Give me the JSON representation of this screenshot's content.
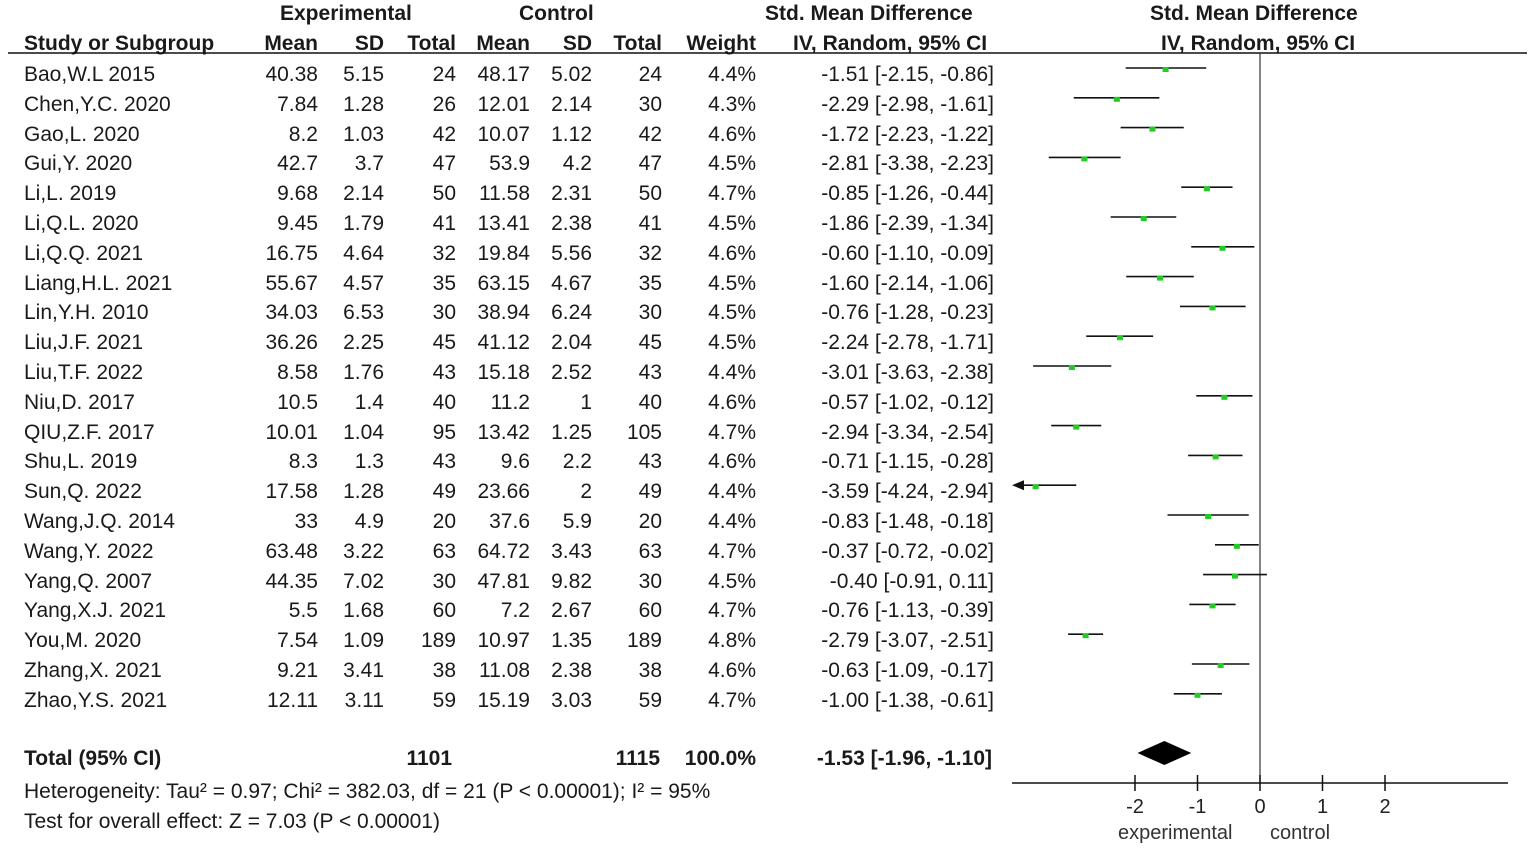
{
  "chart_data": {
    "type": "forest",
    "headers": {
      "group_experimental": "Experimental",
      "group_control": "Control",
      "effect_title": "Std. Mean Difference",
      "study": "Study or Subgroup",
      "mean": "Mean",
      "sd": "SD",
      "total": "Total",
      "weight": "Weight",
      "ci_method": "IV, Random, 95% CI",
      "plot_title": "Std. Mean Difference",
      "plot_method": "IV, Random, 95% CI"
    },
    "studies": [
      {
        "name": "Bao,W.L 2015",
        "e_mean": "40.38",
        "e_sd": "5.15",
        "e_total": "24",
        "c_mean": "48.17",
        "c_sd": "5.02",
        "c_total": "24",
        "weight": "4.4%",
        "ci_text": "-1.51 [-2.15, -0.86]",
        "smd": -1.51,
        "lo": -2.15,
        "hi": -0.86
      },
      {
        "name": "Chen,Y.C. 2020",
        "e_mean": "7.84",
        "e_sd": "1.28",
        "e_total": "26",
        "c_mean": "12.01",
        "c_sd": "2.14",
        "c_total": "30",
        "weight": "4.3%",
        "ci_text": "-2.29 [-2.98, -1.61]",
        "smd": -2.29,
        "lo": -2.98,
        "hi": -1.61
      },
      {
        "name": "Gao,L. 2020",
        "e_mean": "8.2",
        "e_sd": "1.03",
        "e_total": "42",
        "c_mean": "10.07",
        "c_sd": "1.12",
        "c_total": "42",
        "weight": "4.6%",
        "ci_text": "-1.72 [-2.23, -1.22]",
        "smd": -1.72,
        "lo": -2.23,
        "hi": -1.22
      },
      {
        "name": "Gui,Y. 2020",
        "e_mean": "42.7",
        "e_sd": "3.7",
        "e_total": "47",
        "c_mean": "53.9",
        "c_sd": "4.2",
        "c_total": "47",
        "weight": "4.5%",
        "ci_text": "-2.81 [-3.38, -2.23]",
        "smd": -2.81,
        "lo": -3.38,
        "hi": -2.23
      },
      {
        "name": "Li,L. 2019",
        "e_mean": "9.68",
        "e_sd": "2.14",
        "e_total": "50",
        "c_mean": "11.58",
        "c_sd": "2.31",
        "c_total": "50",
        "weight": "4.7%",
        "ci_text": "-0.85 [-1.26, -0.44]",
        "smd": -0.85,
        "lo": -1.26,
        "hi": -0.44
      },
      {
        "name": "Li,Q.L. 2020",
        "e_mean": "9.45",
        "e_sd": "1.79",
        "e_total": "41",
        "c_mean": "13.41",
        "c_sd": "2.38",
        "c_total": "41",
        "weight": "4.5%",
        "ci_text": "-1.86 [-2.39, -1.34]",
        "smd": -1.86,
        "lo": -2.39,
        "hi": -1.34
      },
      {
        "name": "Li,Q.Q. 2021",
        "e_mean": "16.75",
        "e_sd": "4.64",
        "e_total": "32",
        "c_mean": "19.84",
        "c_sd": "5.56",
        "c_total": "32",
        "weight": "4.6%",
        "ci_text": "-0.60 [-1.10, -0.09]",
        "smd": -0.6,
        "lo": -1.1,
        "hi": -0.09
      },
      {
        "name": "Liang,H.L. 2021",
        "e_mean": "55.67",
        "e_sd": "4.57",
        "e_total": "35",
        "c_mean": "63.15",
        "c_sd": "4.67",
        "c_total": "35",
        "weight": "4.5%",
        "ci_text": "-1.60 [-2.14, -1.06]",
        "smd": -1.6,
        "lo": -2.14,
        "hi": -1.06
      },
      {
        "name": "Lin,Y.H. 2010",
        "e_mean": "34.03",
        "e_sd": "6.53",
        "e_total": "30",
        "c_mean": "38.94",
        "c_sd": "6.24",
        "c_total": "30",
        "weight": "4.5%",
        "ci_text": "-0.76 [-1.28, -0.23]",
        "smd": -0.76,
        "lo": -1.28,
        "hi": -0.23
      },
      {
        "name": "Liu,J.F. 2021",
        "e_mean": "36.26",
        "e_sd": "2.25",
        "e_total": "45",
        "c_mean": "41.12",
        "c_sd": "2.04",
        "c_total": "45",
        "weight": "4.5%",
        "ci_text": "-2.24 [-2.78, -1.71]",
        "smd": -2.24,
        "lo": -2.78,
        "hi": -1.71
      },
      {
        "name": "Liu,T.F. 2022",
        "e_mean": "8.58",
        "e_sd": "1.76",
        "e_total": "43",
        "c_mean": "15.18",
        "c_sd": "2.52",
        "c_total": "43",
        "weight": "4.4%",
        "ci_text": "-3.01 [-3.63, -2.38]",
        "smd": -3.01,
        "lo": -3.63,
        "hi": -2.38
      },
      {
        "name": "Niu,D. 2017",
        "e_mean": "10.5",
        "e_sd": "1.4",
        "e_total": "40",
        "c_mean": "11.2",
        "c_sd": "1",
        "c_total": "40",
        "weight": "4.6%",
        "ci_text": "-0.57 [-1.02, -0.12]",
        "smd": -0.57,
        "lo": -1.02,
        "hi": -0.12
      },
      {
        "name": "QIU,Z.F. 2017",
        "e_mean": "10.01",
        "e_sd": "1.04",
        "e_total": "95",
        "c_mean": "13.42",
        "c_sd": "1.25",
        "c_total": "105",
        "weight": "4.7%",
        "ci_text": "-2.94 [-3.34, -2.54]",
        "smd": -2.94,
        "lo": -3.34,
        "hi": -2.54
      },
      {
        "name": "Shu,L. 2019",
        "e_mean": "8.3",
        "e_sd": "1.3",
        "e_total": "43",
        "c_mean": "9.6",
        "c_sd": "2.2",
        "c_total": "43",
        "weight": "4.6%",
        "ci_text": "-0.71 [-1.15, -0.28]",
        "smd": -0.71,
        "lo": -1.15,
        "hi": -0.28
      },
      {
        "name": "Sun,Q. 2022",
        "e_mean": "17.58",
        "e_sd": "1.28",
        "e_total": "49",
        "c_mean": "23.66",
        "c_sd": "2",
        "c_total": "49",
        "weight": "4.4%",
        "ci_text": "-3.59 [-4.24, -2.94]",
        "smd": -3.59,
        "lo": -4.24,
        "hi": -2.94
      },
      {
        "name": "Wang,J.Q. 2014",
        "e_mean": "33",
        "e_sd": "4.9",
        "e_total": "20",
        "c_mean": "37.6",
        "c_sd": "5.9",
        "c_total": "20",
        "weight": "4.4%",
        "ci_text": "-0.83 [-1.48, -0.18]",
        "smd": -0.83,
        "lo": -1.48,
        "hi": -0.18
      },
      {
        "name": "Wang,Y. 2022",
        "e_mean": "63.48",
        "e_sd": "3.22",
        "e_total": "63",
        "c_mean": "64.72",
        "c_sd": "3.43",
        "c_total": "63",
        "weight": "4.7%",
        "ci_text": "-0.37 [-0.72, -0.02]",
        "smd": -0.37,
        "lo": -0.72,
        "hi": -0.02
      },
      {
        "name": "Yang,Q. 2007",
        "e_mean": "44.35",
        "e_sd": "7.02",
        "e_total": "30",
        "c_mean": "47.81",
        "c_sd": "9.82",
        "c_total": "30",
        "weight": "4.5%",
        "ci_text": "-0.40 [-0.91, 0.11]",
        "smd": -0.4,
        "lo": -0.91,
        "hi": 0.11
      },
      {
        "name": "Yang,X.J. 2021",
        "e_mean": "5.5",
        "e_sd": "1.68",
        "e_total": "60",
        "c_mean": "7.2",
        "c_sd": "2.67",
        "c_total": "60",
        "weight": "4.7%",
        "ci_text": "-0.76 [-1.13, -0.39]",
        "smd": -0.76,
        "lo": -1.13,
        "hi": -0.39
      },
      {
        "name": "You,M. 2020",
        "e_mean": "7.54",
        "e_sd": "1.09",
        "e_total": "189",
        "c_mean": "10.97",
        "c_sd": "1.35",
        "c_total": "189",
        "weight": "4.8%",
        "ci_text": "-2.79 [-3.07, -2.51]",
        "smd": -2.79,
        "lo": -3.07,
        "hi": -2.51
      },
      {
        "name": "Zhang,X. 2021",
        "e_mean": "9.21",
        "e_sd": "3.41",
        "e_total": "38",
        "c_mean": "11.08",
        "c_sd": "2.38",
        "c_total": "38",
        "weight": "4.6%",
        "ci_text": "-0.63 [-1.09, -0.17]",
        "smd": -0.63,
        "lo": -1.09,
        "hi": -0.17
      },
      {
        "name": "Zhao,Y.S. 2021",
        "e_mean": "12.11",
        "e_sd": "3.11",
        "e_total": "59",
        "c_mean": "15.19",
        "c_sd": "3.03",
        "c_total": "59",
        "weight": "4.7%",
        "ci_text": "-1.00 [-1.38, -0.61]",
        "smd": -1.0,
        "lo": -1.38,
        "hi": -0.61
      }
    ],
    "total": {
      "label": "Total (95% CI)",
      "e_total": "1101",
      "c_total": "1115",
      "weight": "100.0%",
      "ci_text": "-1.53 [-1.96, -1.10]",
      "smd": -1.53,
      "lo": -1.96,
      "hi": -1.1
    },
    "heterogeneity": "Heterogeneity: Tau² = 0.97; Chi² = 382.03, df = 21 (P < 0.00001); I² = 95%",
    "overall_effect": "Test for overall effect: Z = 7.03 (P < 0.00001)",
    "axis": {
      "min": -4,
      "max": 4,
      "ticks": [
        -2,
        -1,
        0,
        1,
        2
      ],
      "tick_labels": [
        "-2",
        "-1",
        "0",
        "1",
        "2"
      ],
      "left_label": "experimental",
      "right_label": "control"
    },
    "colors": {
      "point": "#22cc22",
      "line": "#111111",
      "diamond": "#000000"
    }
  }
}
